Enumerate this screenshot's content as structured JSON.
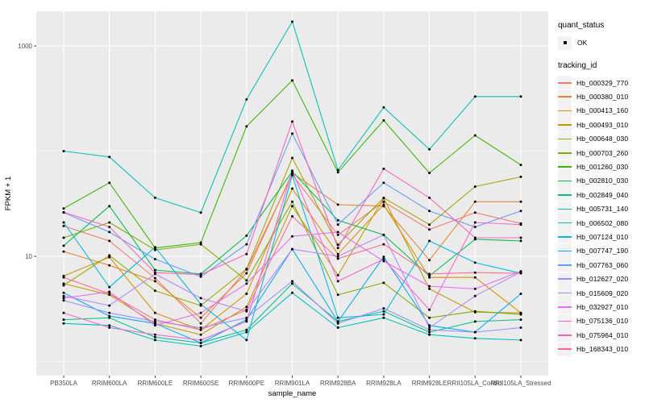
{
  "figure": {
    "background": "#FFFFFF",
    "panel_background": "#EBEBEB",
    "gridline_color": "#FFFFFF",
    "point_color": "#000000",
    "axis_text_color": "#4D4D4D",
    "axis_title_color": "#000000",
    "tick_color": "#333333"
  },
  "legend": {
    "quant_status_title": "quant_status",
    "quant_status_value": "OK",
    "tracking_title": "tracking_id"
  },
  "chart_data": {
    "type": "line",
    "title": "",
    "xlabel": "sample_name",
    "ylabel": "FPKM + 1",
    "y_scale": "log10",
    "y_tick_labels": [
      "1000",
      "10"
    ],
    "y_major_breaks": [
      1000,
      10
    ],
    "y_minor_breaks": [
      100,
      1
    ],
    "ylim": [
      0.73,
      2100
    ],
    "grid": true,
    "legend_position": "right",
    "marker": "point",
    "categories": [
      "PB350LA",
      "RRIM600LA",
      "RRIM600LE",
      "RRIM600SE",
      "RRIM600PE",
      "RRIM901LA",
      "RRIM928BA",
      "RRIM928LA",
      "RRIM928LE",
      "RRII105LA_Control",
      "RRII105LA_Stressed"
    ],
    "series": [
      {
        "name": "Hb_000329_770",
        "color": "#F8766D",
        "values": [
          19.4,
          14,
          6.2,
          2.3,
          7.5,
          60,
          16,
          33,
          18,
          26,
          20.5
        ]
      },
      {
        "name": "Hb_000380_010",
        "color": "#EA8331",
        "values": [
          11.1,
          8.2,
          5.8,
          2.6,
          6.9,
          62,
          31,
          30,
          9.2,
          33,
          33
        ]
      },
      {
        "name": "Hb_000413_160",
        "color": "#D89000",
        "values": [
          6.5,
          9.8,
          2.9,
          2.0,
          4.4,
          44,
          10.5,
          31,
          6.3,
          6.3,
          2.9
        ]
      },
      {
        "name": "Hb_000493_010",
        "color": "#C09B00",
        "values": [
          5.5,
          4.3,
          2.3,
          1.8,
          3.3,
          30,
          6.6,
          35.7,
          4.9,
          2.94,
          2.9
        ]
      },
      {
        "name": "Hb_000648_030",
        "color": "#A3A500",
        "values": [
          5.3,
          10.2,
          4.7,
          3.4,
          7.6,
          86,
          12.9,
          36,
          20,
          46,
          57
        ]
      },
      {
        "name": "Hb_000703_260",
        "color": "#7CAE00",
        "values": [
          15,
          21,
          11.5,
          13,
          5.9,
          33,
          4.3,
          5.6,
          2.6,
          3.0,
          2.8
        ]
      },
      {
        "name": "Hb_001260_030",
        "color": "#39B600",
        "values": [
          28.5,
          50,
          12,
          13.5,
          172,
          470,
          63,
          196,
          62,
          141,
          74
        ]
      },
      {
        "name": "Hb_002810_030",
        "color": "#00BB4E",
        "values": [
          12.6,
          30,
          7.4,
          6.8,
          15.7,
          64,
          22,
          16,
          6.5,
          14.5,
          14
        ]
      },
      {
        "name": "Hb_002849_040",
        "color": "#00C087",
        "values": [
          2.5,
          2.6,
          1.7,
          1.5,
          2.0,
          5.5,
          2.4,
          3.0,
          1.9,
          2.4,
          2.5
        ]
      },
      {
        "name": "Hb_005731_140",
        "color": "#00C0B2",
        "values": [
          100,
          88,
          36,
          26,
          310,
          1700,
          66,
          260,
          104,
          330,
          330
        ]
      },
      {
        "name": "Hb_006502_080",
        "color": "#00BFC4",
        "values": [
          2.3,
          2.2,
          1.6,
          1.4,
          1.9,
          4.5,
          2.1,
          2.6,
          1.8,
          1.66,
          1.6
        ]
      },
      {
        "name": "Hb_007124_010",
        "color": "#00B8E7",
        "values": [
          21,
          5.1,
          12.2,
          3.5,
          1.6,
          59,
          2.6,
          2.8,
          14,
          8.7,
          6.9
        ]
      },
      {
        "name": "Hb_007747_190",
        "color": "#00ACFC",
        "values": [
          4.5,
          2.7,
          2.3,
          1.5,
          2.5,
          11.7,
          2.4,
          9.9,
          2.2,
          1.9,
          4.4
        ]
      },
      {
        "name": "Hb_007763_060",
        "color": "#619CFF",
        "values": [
          26,
          17,
          9.4,
          6.4,
          13,
          147,
          20,
          50,
          27,
          19,
          27
        ]
      },
      {
        "name": "Hb_012627_020",
        "color": "#9590FF",
        "values": [
          3.8,
          2.9,
          2.4,
          2.1,
          2.6,
          5.8,
          2.3,
          3.2,
          2.0,
          1.9,
          2.1
        ]
      },
      {
        "name": "Hb_015609_020",
        "color": "#B983FF",
        "values": [
          4.2,
          3.4,
          6.8,
          4.0,
          3.0,
          11.7,
          10,
          16,
          2.1,
          4.2,
          7.1
        ]
      },
      {
        "name": "Hb_032927_010",
        "color": "#E76BF3",
        "values": [
          4.0,
          4.6,
          2.2,
          2.9,
          5.5,
          15.5,
          17,
          9.0,
          5.2,
          4.9,
          7.2
        ]
      },
      {
        "name": "Hb_075136_010",
        "color": "#F564D4",
        "values": [
          2.9,
          2.1,
          1.8,
          1.6,
          2.4,
          65,
          5.8,
          9.4,
          3.1,
          21,
          20
        ]
      },
      {
        "name": "Hb_075964_010",
        "color": "#FD61B4",
        "values": [
          26.3,
          19,
          7.0,
          6.7,
          10.5,
          191,
          12,
          68,
          36,
          15,
          15
        ]
      },
      {
        "name": "Hb_168343_010",
        "color": "#FF6A90",
        "values": [
          6.3,
          4.4,
          2.5,
          2.0,
          3.1,
          24,
          9.5,
          13,
          6.8,
          7.0,
          6.9
        ]
      }
    ]
  }
}
